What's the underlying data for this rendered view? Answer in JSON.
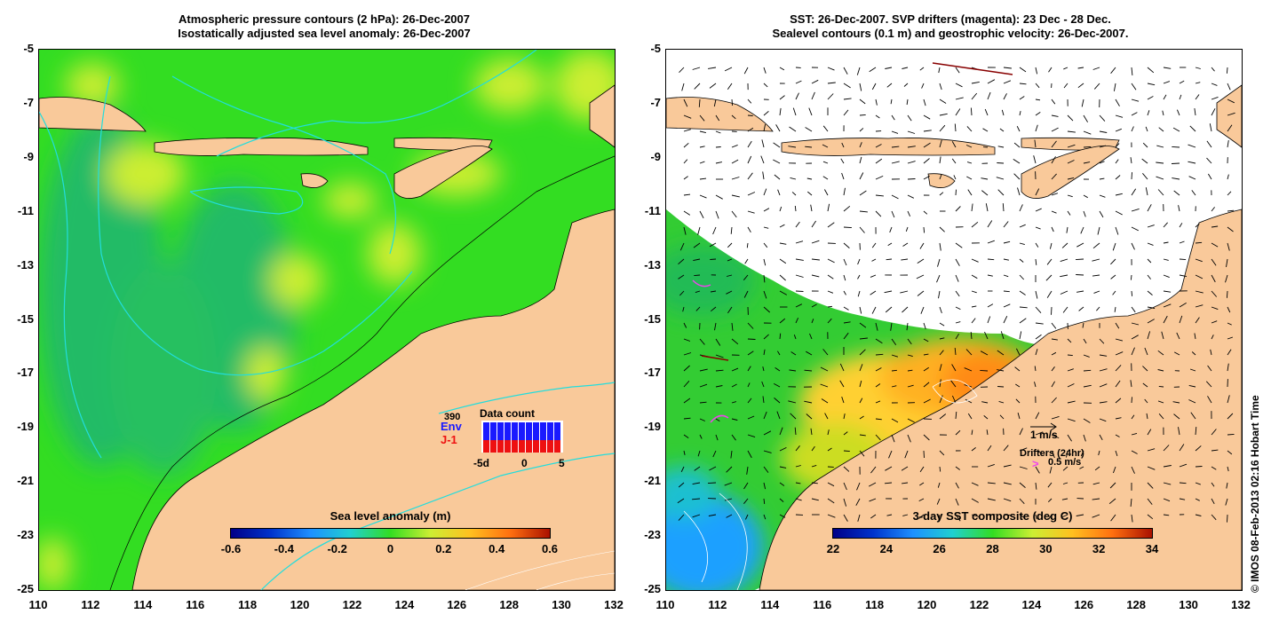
{
  "left": {
    "title_line1": "Atmospheric pressure contours (2 hPa): 26-Dec-2007",
    "title_line2": "Isostatically adjusted sea level anomaly: 26-Dec-2007",
    "colorbar_title": "Sea level anomaly (m)",
    "colorbar_ticks": [
      "-0.6",
      "-0.4",
      "-0.2",
      "0",
      "0.2",
      "0.4",
      "0.6"
    ],
    "data_count": {
      "title": "Data count",
      "max_label": "390",
      "series_env": "Env",
      "series_j1": "J-1",
      "axis_labels": [
        "-5d",
        "0",
        "5"
      ],
      "env_color": "#1a1aff",
      "j1_color": "#ee1111"
    }
  },
  "right": {
    "title_line1": "SST: 26-Dec-2007. SVP drifters (magenta): 23 Dec - 28 Dec.",
    "title_line2": "Sealevel contours (0.1 m) and geostrophic velocity: 26-Dec-2007.",
    "colorbar_title": "3-day SST composite (deg C)",
    "colorbar_ticks": [
      "22",
      "24",
      "26",
      "28",
      "30",
      "32",
      "34"
    ],
    "velocity_scale_label": "1 m/s",
    "drifters_label": "Drifters (24hr)",
    "drifter_speed_label": "0.5 m/s",
    "drifter_glyph": ">"
  },
  "axes": {
    "y_ticks": [
      "-5",
      "-7",
      "-9",
      "-11",
      "-13",
      "-15",
      "-17",
      "-19",
      "-21",
      "-23",
      "-25"
    ],
    "x_ticks": [
      "110",
      "112",
      "114",
      "116",
      "118",
      "120",
      "122",
      "124",
      "126",
      "128",
      "130",
      "132"
    ],
    "lon_range": [
      110,
      132
    ],
    "lat_range": [
      -25,
      -5
    ]
  },
  "copyright": "© IMOS 08-Feb-2013 02:16 Hobart Time",
  "colors": {
    "land": "#f9c99a",
    "sla_green": "#33dd22",
    "sla_yellow": "#ccee33",
    "sla_teal": "#22bb66",
    "sst_orange": "#ff9a20",
    "sst_yellow": "#ffd030",
    "sst_blue": "#1ea0ff",
    "pressure_contour": "#22dddd",
    "drifter": "#ee44ee"
  }
}
